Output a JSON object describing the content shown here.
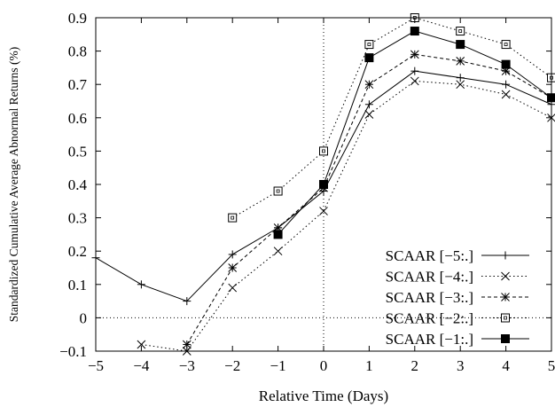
{
  "chart_data": {
    "type": "line",
    "title": "",
    "xlabel": "Relative Time (Days)",
    "ylabel": "Standardized Cumulative Average Abnormal Returns (%)",
    "xlim": [
      -5,
      5
    ],
    "ylim": [
      -0.1,
      0.9
    ],
    "x_ticks": [
      -5,
      -4,
      -3,
      -2,
      -1,
      0,
      1,
      2,
      3,
      4,
      5
    ],
    "y_ticks": [
      -0.1,
      0,
      0.1,
      0.2,
      0.3,
      0.4,
      0.5,
      0.6,
      0.7,
      0.8,
      0.9
    ],
    "x_tick_labels": [
      "−5",
      "−4",
      "−3",
      "−2",
      "−1",
      "0",
      "1",
      "2",
      "3",
      "4",
      "5"
    ],
    "y_tick_labels": [
      "−0.1",
      "0",
      "0.1",
      "0.2",
      "0.3",
      "0.4",
      "0.5",
      "0.6",
      "0.7",
      "0.8",
      "0.9"
    ],
    "reference_lines": {
      "vertical_x": 0,
      "horizontal_y": 0,
      "style": "dotted"
    },
    "grid": false,
    "legend_position": "bottom-right",
    "series": [
      {
        "name": "SCAAR [−5:.]",
        "marker": "plus",
        "line_style": "solid",
        "x": [
          -5,
          -4,
          -3,
          -2,
          -1,
          0,
          1,
          2,
          3,
          4,
          5
        ],
        "values": [
          0.18,
          0.1,
          0.05,
          0.19,
          0.27,
          0.38,
          0.64,
          0.74,
          0.72,
          0.7,
          0.64
        ]
      },
      {
        "name": "SCAAR [−4:.]",
        "marker": "cross",
        "line_style": "dotted",
        "x": [
          -4,
          -3,
          -2,
          -1,
          0,
          1,
          2,
          3,
          4,
          5
        ],
        "values": [
          -0.08,
          -0.1,
          0.09,
          0.2,
          0.32,
          0.61,
          0.71,
          0.7,
          0.67,
          0.6
        ]
      },
      {
        "name": "SCAAR [−3:.]",
        "marker": "asterisk",
        "line_style": "dashed",
        "x": [
          -3,
          -2,
          -1,
          0,
          1,
          2,
          3,
          4,
          5
        ],
        "values": [
          -0.08,
          0.15,
          0.27,
          0.39,
          0.7,
          0.79,
          0.77,
          0.74,
          0.66
        ]
      },
      {
        "name": "SCAAR [−2:.]",
        "marker": "open-square",
        "line_style": "dotted",
        "x": [
          -2,
          -1,
          0,
          1,
          2,
          3,
          4,
          5
        ],
        "values": [
          0.3,
          0.38,
          0.5,
          0.82,
          0.9,
          0.86,
          0.82,
          0.72
        ]
      },
      {
        "name": "SCAAR [−1:.]",
        "marker": "filled-square",
        "line_style": "solid",
        "x": [
          -1,
          0,
          1,
          2,
          3,
          4,
          5
        ],
        "values": [
          0.25,
          0.4,
          0.78,
          0.86,
          0.82,
          0.76,
          0.66
        ]
      }
    ]
  }
}
